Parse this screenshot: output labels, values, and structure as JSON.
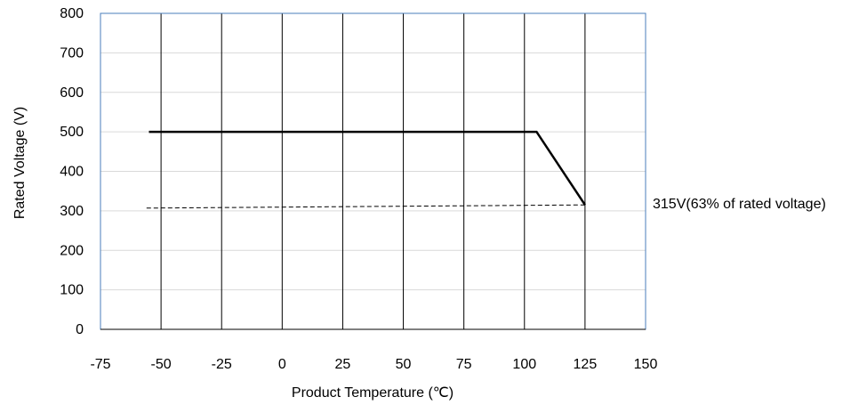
{
  "chart_data": {
    "type": "line",
    "title": "",
    "xlabel": "Product Temperature (℃)",
    "ylabel": "Rated Voltage (V)",
    "xlim": [
      -75,
      150
    ],
    "ylim": [
      0,
      800
    ],
    "x_ticks": [
      -75,
      -50,
      -25,
      0,
      25,
      50,
      75,
      100,
      125,
      150
    ],
    "y_ticks": [
      0,
      100,
      200,
      300,
      400,
      500,
      600,
      700,
      800
    ],
    "x_grid": true,
    "y_grid": true,
    "series": [
      {
        "style": "solid",
        "color": "#000000",
        "x": [
          -55,
          105,
          125
        ],
        "y": [
          500,
          500,
          315
        ]
      },
      {
        "style": "dashed",
        "color": "#000000",
        "x": [
          -56,
          125
        ],
        "y": [
          307,
          315
        ]
      }
    ],
    "annotations": [
      {
        "text": "315V(63% of rated voltage)",
        "x": 125,
        "y": 315
      }
    ]
  }
}
